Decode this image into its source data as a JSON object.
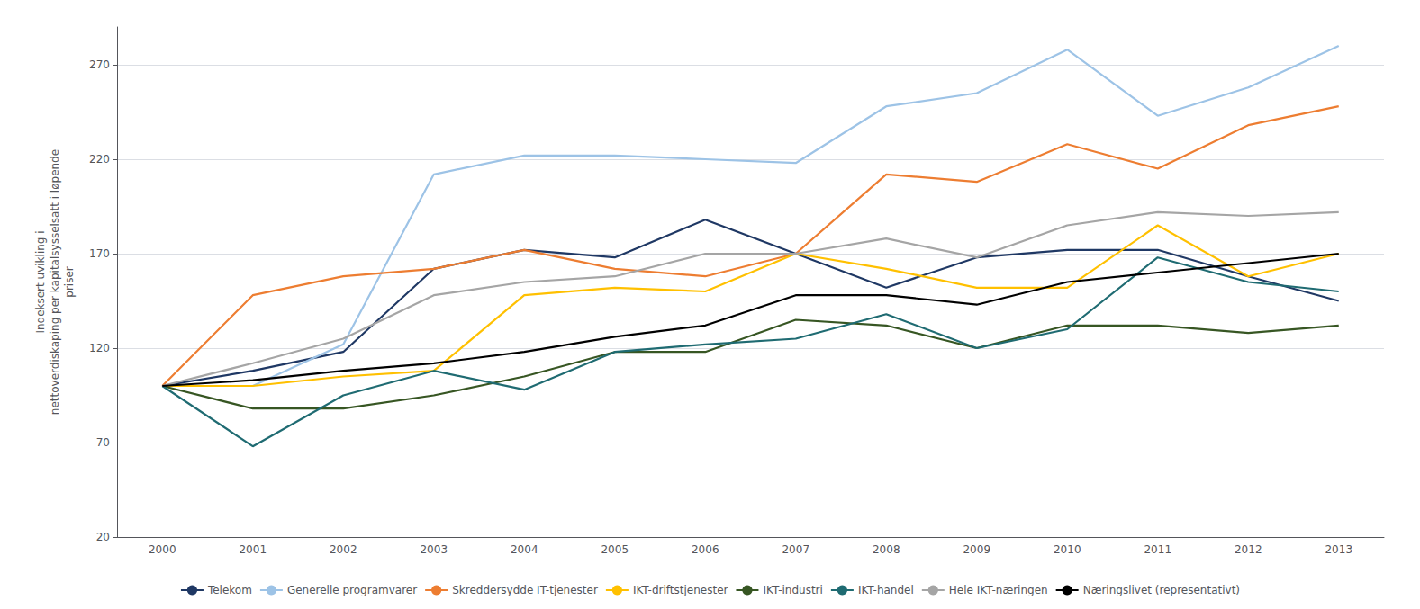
{
  "chart_data": {
    "type": "line",
    "categories": [
      "2000",
      "2001",
      "2002",
      "2003",
      "2004",
      "2005",
      "2006",
      "2007",
      "2008",
      "2009",
      "2010",
      "2011",
      "2012",
      "2013"
    ],
    "series": [
      {
        "name": "Telekom",
        "color": "#1f3864",
        "values": [
          100,
          108,
          118,
          162,
          172,
          168,
          188,
          170,
          152,
          168,
          172,
          172,
          158,
          145
        ]
      },
      {
        "name": "Generelle programvarer",
        "color": "#9dc3e6",
        "values": [
          100,
          100,
          122,
          212,
          222,
          222,
          220,
          218,
          248,
          255,
          278,
          243,
          258,
          280
        ]
      },
      {
        "name": "Skreddersydde IT-tjenester",
        "color": "#ed7d31",
        "values": [
          100,
          148,
          158,
          162,
          172,
          162,
          158,
          170,
          212,
          208,
          228,
          215,
          238,
          248
        ]
      },
      {
        "name": "IKT-driftstjenester",
        "color": "#ffc000",
        "values": [
          100,
          100,
          105,
          108,
          148,
          152,
          150,
          170,
          162,
          152,
          152,
          185,
          158,
          170
        ]
      },
      {
        "name": "IKT-industri",
        "color": "#375623",
        "values": [
          100,
          88,
          88,
          95,
          105,
          118,
          118,
          135,
          132,
          120,
          132,
          132,
          128,
          132
        ]
      },
      {
        "name": "IKT-handel",
        "color": "#1f6b72",
        "values": [
          100,
          68,
          95,
          108,
          98,
          118,
          122,
          125,
          138,
          120,
          130,
          168,
          155,
          150
        ]
      },
      {
        "name": "Hele IKT-næringen",
        "color": "#a5a5a5",
        "values": [
          100,
          112,
          125,
          148,
          155,
          158,
          170,
          170,
          178,
          168,
          185,
          192,
          190,
          192
        ]
      },
      {
        "name": "Næringslivet (representativt)",
        "color": "#000000",
        "values": [
          100,
          103,
          108,
          112,
          118,
          126,
          132,
          148,
          148,
          143,
          155,
          160,
          165,
          170
        ]
      }
    ],
    "ylabel": "Indeksert uvikling i\nnettoverdiskaping per kapitalsysselsatt i løpende\npriser",
    "ylim": [
      20,
      290
    ],
    "yticks": [
      20,
      70,
      120,
      170,
      220,
      270
    ],
    "grid": true,
    "legend": "bottom"
  }
}
